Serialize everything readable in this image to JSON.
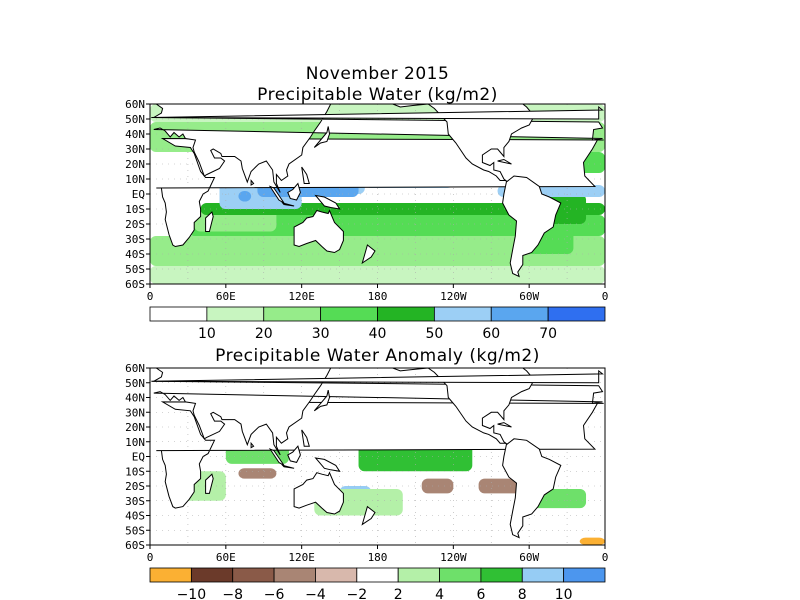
{
  "top_panel": {
    "title_line1": "November 2015",
    "title_line2": "Precipitable Water (kg/m2)",
    "colorbar": {
      "colors": [
        "#ffffff",
        "#c8f5c0",
        "#96ec8a",
        "#55dc55",
        "#24b424",
        "#9ccff5",
        "#5aa6ef",
        "#2f6ff0"
      ],
      "labels": [
        "10",
        "20",
        "30",
        "40",
        "50",
        "60",
        "70"
      ]
    }
  },
  "bottom_panel": {
    "title": "Precipitable Water Anomaly (kg/m2)",
    "colorbar": {
      "colors": [
        "#fbb033",
        "#6b3a2a",
        "#8a5a48",
        "#a98574",
        "#d8b8ac",
        "#ffffff",
        "#b4f0a8",
        "#6ee06a",
        "#30c034",
        "#96ccf4",
        "#4c96ee"
      ],
      "labels": [
        "−10",
        "−8",
        "−6",
        "−4",
        "−2",
        "2",
        "4",
        "6",
        "8",
        "10"
      ]
    }
  },
  "axes": {
    "lat_labels": [
      "60N",
      "50N",
      "40N",
      "30N",
      "20N",
      "10N",
      "EQ",
      "10S",
      "20S",
      "30S",
      "40S",
      "50S",
      "60S"
    ],
    "lon_labels": [
      "0",
      "60E",
      "120E",
      "180",
      "120W",
      "60W",
      "0"
    ]
  }
}
